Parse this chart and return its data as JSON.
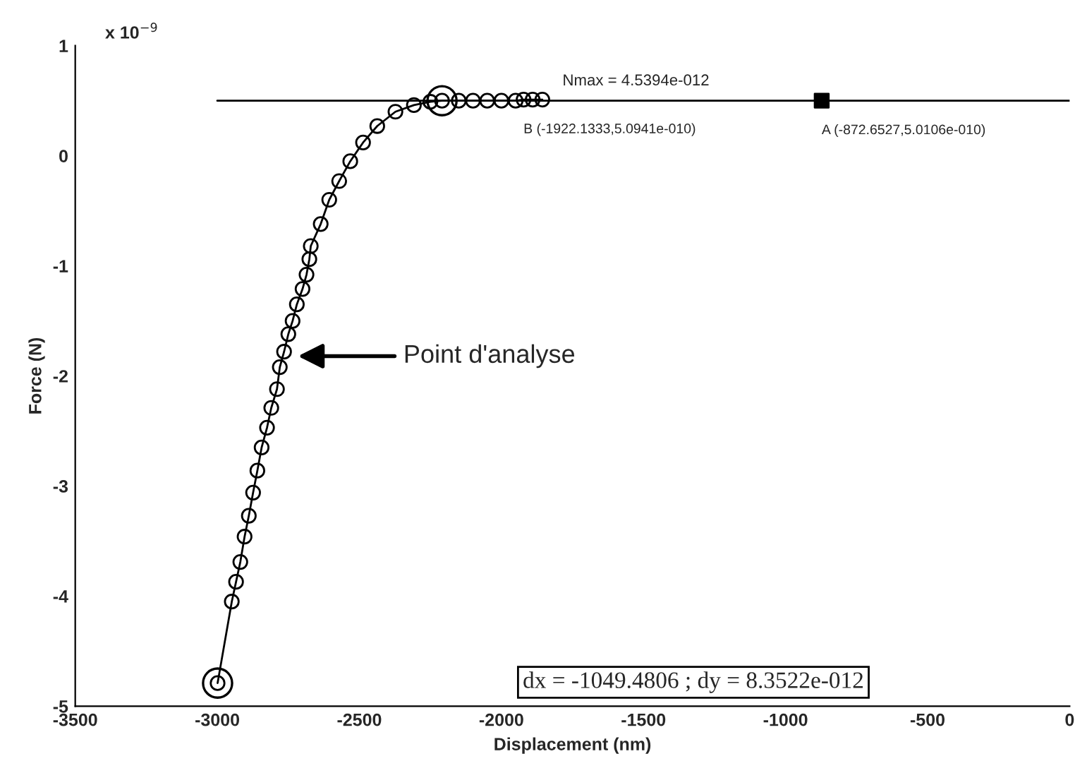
{
  "chart_data": {
    "type": "line",
    "xlabel": "Displacement (nm)",
    "ylabel": "Force (N)",
    "xlim": [
      -3500,
      0
    ],
    "xticks": [
      -3500,
      -3000,
      -2500,
      -2000,
      -1500,
      -1000,
      -500,
      0
    ],
    "ylim": [
      -5,
      1
    ],
    "yticks": [
      -5,
      -4,
      -3,
      -2,
      -1,
      0,
      1
    ],
    "grid": false,
    "series": [
      {
        "type": "line",
        "color": "#000000",
        "marker": "none",
        "x": [
          -3000,
          0
        ],
        "values": [
          0.5,
          0.5
        ]
      },
      {
        "color": "#000000",
        "marker": "circle",
        "x": [
          -2999,
          -2949,
          -2934,
          -2919,
          -2904,
          -2889,
          -2874,
          -2859,
          -2844,
          -2825,
          -2810,
          -2790,
          -2780,
          -2765,
          -2750,
          -2735,
          -2720,
          -2700,
          -2686,
          -2676,
          -2671,
          -2636,
          -2606,
          -2571,
          -2532,
          -2487,
          -2437,
          -2373,
          -2308,
          -2250,
          -2209,
          -2150,
          -2100,
          -2050,
          -2000,
          -1950,
          -1922,
          -1890,
          -1856
        ],
        "values": [
          -4.79,
          -4.05,
          -3.87,
          -3.69,
          -3.46,
          -3.27,
          -3.06,
          -2.86,
          -2.65,
          -2.47,
          -2.29,
          -2.12,
          -1.92,
          -1.78,
          -1.62,
          -1.5,
          -1.35,
          -1.21,
          -1.08,
          -0.94,
          -0.82,
          -0.62,
          -0.4,
          -0.23,
          -0.05,
          0.12,
          0.27,
          0.4,
          0.46,
          0.49,
          0.5,
          0.5,
          0.5,
          0.5,
          0.5,
          0.5,
          0.51,
          0.51,
          0.51
        ]
      },
      {
        "type": "scatter",
        "color": "#000000",
        "marker": "circle",
        "x": [
          -2999,
          -2209
        ],
        "values": [
          -4.79,
          0.5
        ]
      },
      {
        "type": "scatter",
        "color": "#000000",
        "marker": "square",
        "x": [
          -872.6527
        ],
        "values": [
          0.5
        ]
      }
    ],
    "annotations": [
      "x 10$^{−9}$",
      "dx = -1049.4806 ; dy = 8.3522e-012",
      "Nmax = 4.5394e-012",
      "Point d'analyse",
      {
        "text": "B (-1922.1333,5.0941e-010)",
        "x": -1922.1333,
        "y": 0.509
      },
      {
        "text": "A (-872.6527,5.0106e-010)",
        "x": -872.6527,
        "y": 0.5
      }
    ]
  }
}
